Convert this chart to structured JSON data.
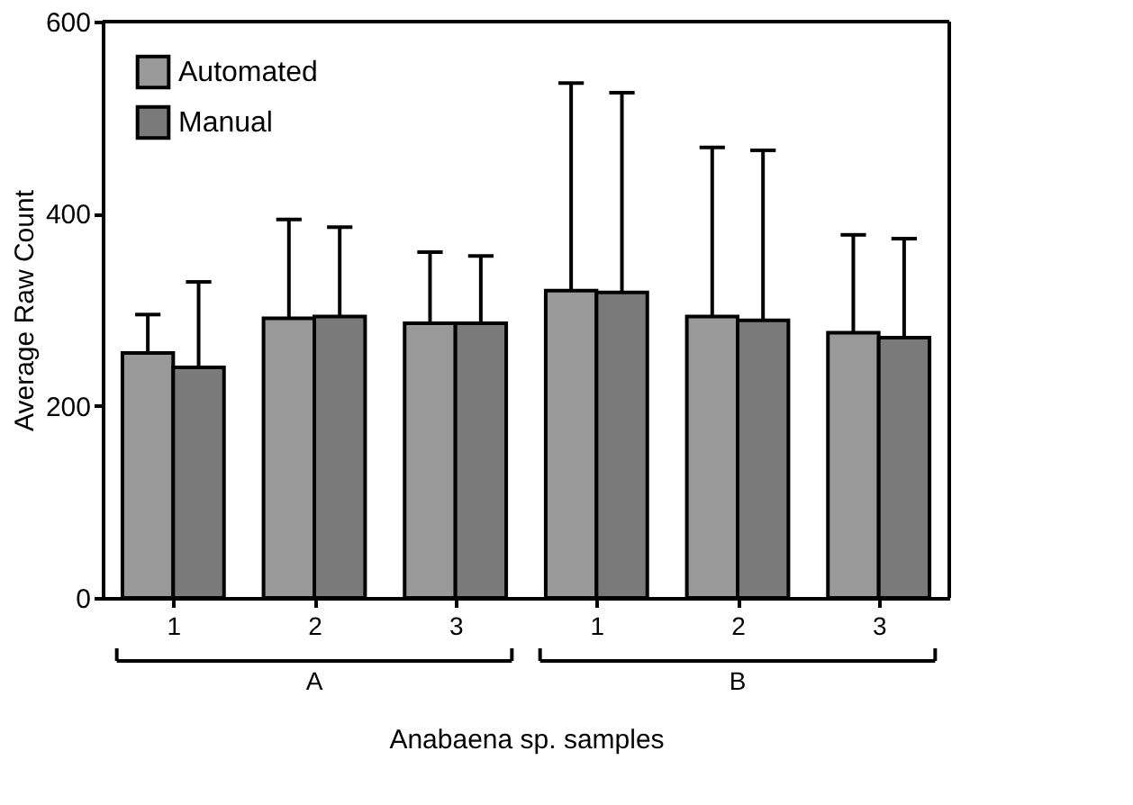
{
  "chart_data": {
    "type": "bar",
    "xlabel": "Anabaena sp. samples",
    "ylabel": "Average Raw Count",
    "categories": [
      "1",
      "2",
      "3",
      "1",
      "2",
      "3"
    ],
    "series": [
      {
        "name": "Automated",
        "color": "#999999",
        "values": [
          255,
          291,
          286,
          320,
          293,
          276
        ],
        "errors": [
          [
            255,
            295
          ],
          [
            291,
            394
          ],
          [
            286,
            360
          ],
          [
            320,
            536
          ],
          [
            293,
            469
          ],
          [
            276,
            378
          ]
        ]
      },
      {
        "name": "Manual",
        "color": "#7a7a7a",
        "values": [
          240,
          293,
          286,
          318,
          289,
          271
        ],
        "errors": [
          [
            240,
            329
          ],
          [
            293,
            386
          ],
          [
            286,
            356
          ],
          [
            318,
            526
          ],
          [
            289,
            466
          ],
          [
            271,
            374
          ]
        ]
      }
    ],
    "annotations": [
      "A",
      "B"
    ],
    "ylim": [
      0,
      600
    ],
    "yticks": [
      0,
      200,
      400,
      600
    ],
    "grid": false,
    "legend": "top left"
  }
}
